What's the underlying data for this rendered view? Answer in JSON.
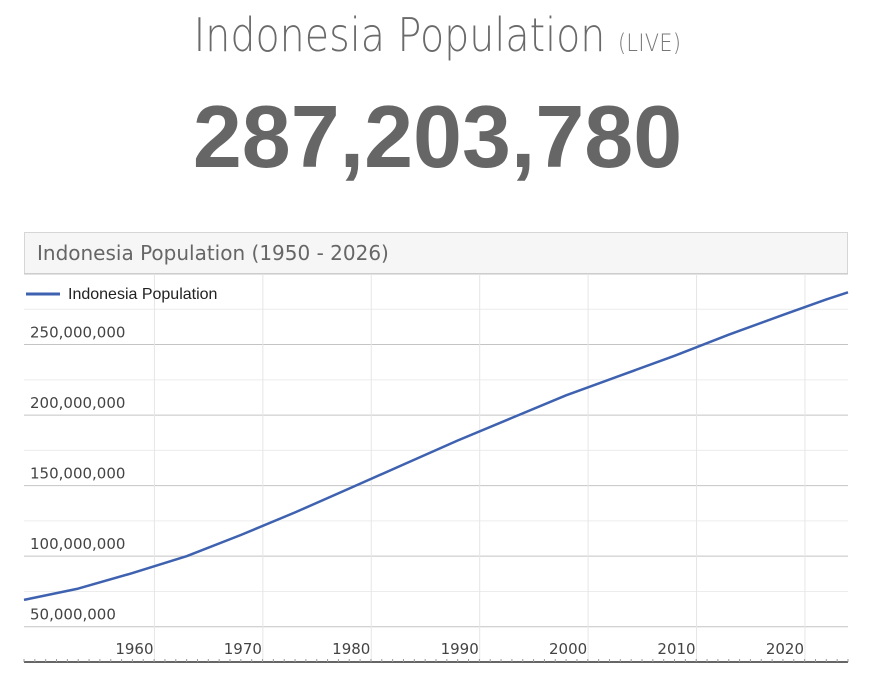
{
  "header": {
    "title": "Indonesia Population",
    "live": "(LIVE)",
    "counter": "287,203,780"
  },
  "chart_data": {
    "type": "line",
    "title": "Indonesia Population (1950 - 2026)",
    "legend": "Indonesia Population",
    "legend_position": "top-left",
    "line_color": "#3f62b0",
    "grid": true,
    "xlim": [
      1950,
      2026
    ],
    "ylim": [
      25000000,
      300000000
    ],
    "x_ticks": [
      1960,
      1970,
      1980,
      1990,
      2000,
      2010,
      2020
    ],
    "x_tick_labels": [
      "1960",
      "1970",
      "1980",
      "1990",
      "2000",
      "2010",
      "2020"
    ],
    "y_ticks": [
      50000000,
      100000000,
      150000000,
      200000000,
      250000000
    ],
    "y_tick_labels": [
      "50,000,000",
      "100,000,000",
      "150,000,000",
      "200,000,000",
      "250,000,000"
    ],
    "series": [
      {
        "name": "Indonesia Population",
        "x": [
          1950,
          1955,
          1960,
          1965,
          1970,
          1975,
          1980,
          1985,
          1990,
          1995,
          2000,
          2005,
          2010,
          2015,
          2020,
          2024,
          2026
        ],
        "y": [
          69000000,
          77000000,
          88000000,
          100000000,
          115000000,
          131000000,
          148000000,
          165000000,
          182000000,
          198000000,
          214000000,
          228000000,
          242000000,
          257000000,
          271000000,
          282000000,
          287000000
        ]
      }
    ]
  }
}
